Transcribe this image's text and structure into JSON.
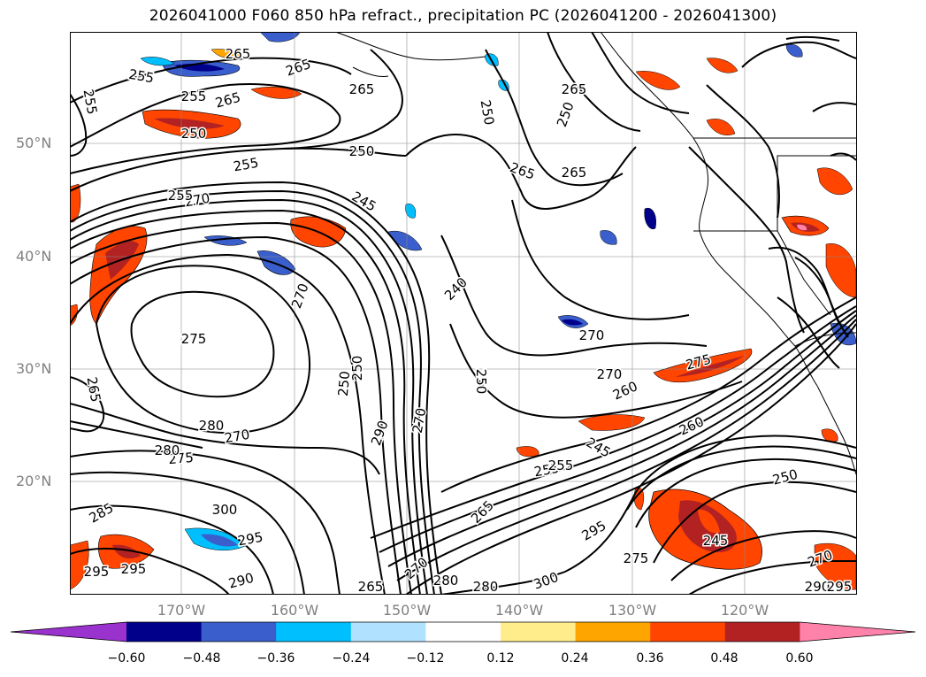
{
  "title": "2026041000 F060 850 hPa refract., precipitation PC (2026041200 - 2026041300)",
  "axes": {
    "lat_labels": [
      "50°N",
      "40°N",
      "30°N",
      "20°N"
    ],
    "lon_labels": [
      "170°W",
      "160°W",
      "150°W",
      "140°W",
      "130°W",
      "120°W"
    ]
  },
  "colorbar": {
    "ticks": [
      "−0.60",
      "−0.48",
      "−0.36",
      "−0.24",
      "−0.12",
      "0.12",
      "0.24",
      "0.36",
      "0.48",
      "0.60"
    ],
    "colors": [
      "#9a32cd",
      "#00008b",
      "#3a5fcd",
      "#00bfff",
      "#b0e2ff",
      "#ffffff",
      "#ffec8b",
      "#ffa500",
      "#ff4500",
      "#b22222",
      "#ff82ab"
    ]
  },
  "contour_labels": [
    "265",
    "265",
    "255",
    "265",
    "265",
    "250",
    "255",
    "250",
    "250",
    "255",
    "265",
    "265",
    "255",
    "250",
    "250",
    "265",
    "245",
    "270",
    "255",
    "240",
    "270",
    "275",
    "270",
    "280",
    "270",
    "250",
    "265",
    "275",
    "280",
    "270",
    "275",
    "270",
    "290",
    "250",
    "260",
    "245",
    "270",
    "255",
    "260",
    "250",
    "285",
    "300",
    "255",
    "295",
    "265",
    "245",
    "295",
    "275",
    "295",
    "300",
    "270",
    "280",
    "290",
    "265",
    "290",
    "295",
    "295",
    "280"
  ]
}
